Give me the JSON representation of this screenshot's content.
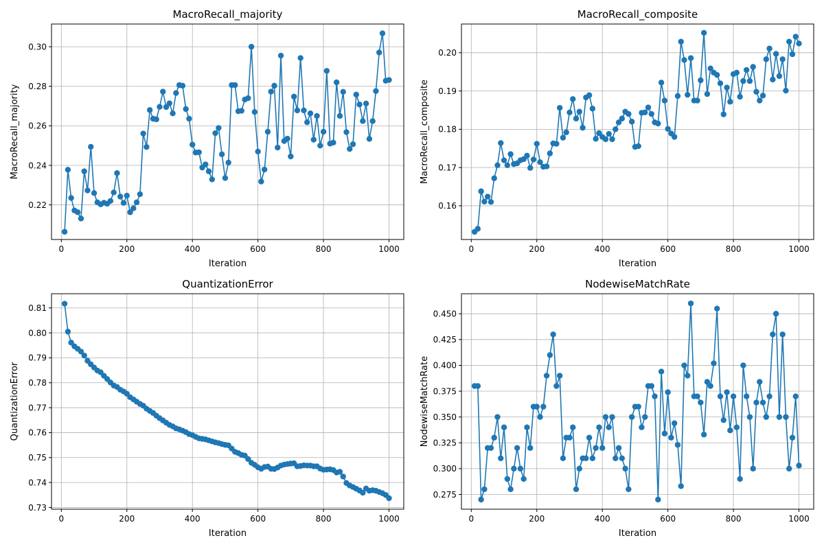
{
  "chart_data": [
    {
      "type": "line",
      "title": "MacroRecall_majority",
      "xlabel": "Iteration",
      "ylabel": "MacroRecall_majority",
      "xlim": [
        -30,
        1045
      ],
      "ylim": [
        0.2025,
        0.3115
      ],
      "xticks": [
        0,
        200,
        400,
        600,
        800,
        1000
      ],
      "yticks": [
        0.22,
        0.24,
        0.26,
        0.28,
        0.3
      ],
      "ytick_labels": [
        "0.22",
        "0.24",
        "0.26",
        "0.28",
        "0.30"
      ],
      "grid": true,
      "color": "#1f77b4",
      "x": [
        10,
        20,
        30,
        40,
        50,
        60,
        70,
        80,
        90,
        100,
        110,
        120,
        130,
        140,
        150,
        160,
        170,
        180,
        190,
        200,
        210,
        220,
        230,
        240,
        250,
        260,
        270,
        280,
        290,
        300,
        310,
        320,
        330,
        340,
        350,
        360,
        370,
        380,
        390,
        400,
        410,
        420,
        430,
        440,
        450,
        460,
        470,
        480,
        490,
        500,
        510,
        520,
        530,
        540,
        550,
        560,
        570,
        580,
        590,
        600,
        610,
        620,
        630,
        640,
        650,
        660,
        670,
        680,
        690,
        700,
        710,
        720,
        730,
        740,
        750,
        760,
        770,
        780,
        790,
        800,
        810,
        820,
        830,
        840,
        850,
        860,
        870,
        880,
        890,
        900,
        910,
        920,
        930,
        940,
        950,
        960,
        970,
        980,
        990,
        1000
      ],
      "y": [
        0.2064,
        0.2378,
        0.2235,
        0.2172,
        0.2163,
        0.2131,
        0.237,
        0.2273,
        0.2494,
        0.226,
        0.2213,
        0.2203,
        0.2211,
        0.2206,
        0.222,
        0.2263,
        0.2361,
        0.2242,
        0.221,
        0.2247,
        0.2163,
        0.2183,
        0.2213,
        0.2254,
        0.2561,
        0.2493,
        0.268,
        0.2636,
        0.2633,
        0.2696,
        0.2773,
        0.2695,
        0.2714,
        0.2663,
        0.2766,
        0.2806,
        0.2803,
        0.2685,
        0.2636,
        0.2505,
        0.2465,
        0.2466,
        0.2389,
        0.2405,
        0.237,
        0.2329,
        0.2563,
        0.2589,
        0.2456,
        0.2336,
        0.2414,
        0.2806,
        0.2806,
        0.2674,
        0.2676,
        0.2733,
        0.274,
        0.3,
        0.267,
        0.247,
        0.2318,
        0.2379,
        0.257,
        0.2773,
        0.2803,
        0.249,
        0.2955,
        0.2523,
        0.2535,
        0.2445,
        0.2748,
        0.2678,
        0.2943,
        0.2678,
        0.2618,
        0.2663,
        0.253,
        0.265,
        0.25,
        0.257,
        0.2878,
        0.251,
        0.2515,
        0.282,
        0.265,
        0.2772,
        0.2568,
        0.2483,
        0.2507,
        0.2758,
        0.2708,
        0.2624,
        0.2713,
        0.2534,
        0.2624,
        0.2776,
        0.2971,
        0.3068,
        0.2828,
        0.2832
      ]
    },
    {
      "type": "line",
      "title": "MacroRecall_composite",
      "xlabel": "Iteration",
      "ylabel": "MacroRecall_composite",
      "xlim": [
        -30,
        1045
      ],
      "ylim": [
        0.1512,
        0.2075
      ],
      "xticks": [
        0,
        200,
        400,
        600,
        800,
        1000
      ],
      "yticks": [
        0.16,
        0.17,
        0.18,
        0.19,
        0.2
      ],
      "ytick_labels": [
        "0.16",
        "0.17",
        "0.18",
        "0.19",
        "0.20"
      ],
      "grid": true,
      "color": "#1f77b4",
      "x": [
        10,
        20,
        30,
        40,
        50,
        60,
        70,
        80,
        90,
        100,
        110,
        120,
        130,
        140,
        150,
        160,
        170,
        180,
        190,
        200,
        210,
        220,
        230,
        240,
        250,
        260,
        270,
        280,
        290,
        300,
        310,
        320,
        330,
        340,
        350,
        360,
        370,
        380,
        390,
        400,
        410,
        420,
        430,
        440,
        450,
        460,
        470,
        480,
        490,
        500,
        510,
        520,
        530,
        540,
        550,
        560,
        570,
        580,
        590,
        600,
        610,
        620,
        630,
        640,
        650,
        660,
        670,
        680,
        690,
        700,
        710,
        720,
        730,
        740,
        750,
        760,
        770,
        780,
        790,
        800,
        810,
        820,
        830,
        840,
        850,
        860,
        870,
        880,
        890,
        900,
        910,
        920,
        930,
        940,
        950,
        960,
        970,
        980,
        990,
        1000
      ],
      "y": [
        0.1532,
        0.154,
        0.1638,
        0.1611,
        0.1624,
        0.161,
        0.1672,
        0.1706,
        0.1764,
        0.1719,
        0.1706,
        0.1735,
        0.1709,
        0.1711,
        0.1719,
        0.1722,
        0.1731,
        0.1699,
        0.1721,
        0.1762,
        0.1714,
        0.1702,
        0.1703,
        0.1737,
        0.1763,
        0.1762,
        0.1856,
        0.1778,
        0.1792,
        0.1844,
        0.1879,
        0.1828,
        0.1846,
        0.1804,
        0.1883,
        0.1889,
        0.1854,
        0.1775,
        0.179,
        0.178,
        0.1774,
        0.1788,
        0.1774,
        0.18,
        0.1818,
        0.1828,
        0.1846,
        0.184,
        0.182,
        0.1754,
        0.1756,
        0.1843,
        0.1844,
        0.1857,
        0.184,
        0.1818,
        0.1815,
        0.1922,
        0.1875,
        0.1801,
        0.1789,
        0.178,
        0.1887,
        0.2029,
        0.1981,
        0.189,
        0.1986,
        0.1875,
        0.1875,
        0.1928,
        0.2052,
        0.1892,
        0.1959,
        0.1948,
        0.1942,
        0.192,
        0.1839,
        0.1909,
        0.1872,
        0.1944,
        0.1948,
        0.1885,
        0.1926,
        0.1955,
        0.1926,
        0.1963,
        0.1898,
        0.1875,
        0.1888,
        0.1983,
        0.2011,
        0.193,
        0.1997,
        0.1939,
        0.1983,
        0.1901,
        0.2029,
        0.1996,
        0.2042,
        0.2024
      ]
    },
    {
      "type": "line",
      "title": "QuantizationError",
      "xlabel": "Iteration",
      "ylabel": "QuantizationError",
      "xlim": [
        -30,
        1045
      ],
      "ylim": [
        0.7293,
        0.8157
      ],
      "xticks": [
        0,
        200,
        400,
        600,
        800,
        1000
      ],
      "yticks": [
        0.73,
        0.74,
        0.75,
        0.76,
        0.77,
        0.78,
        0.79,
        0.8,
        0.81
      ],
      "ytick_labels": [
        "0.73",
        "0.74",
        "0.75",
        "0.76",
        "0.77",
        "0.78",
        "0.79",
        "0.80",
        "0.81"
      ],
      "grid": true,
      "color": "#1f77b4",
      "x": [
        10,
        20,
        30,
        40,
        50,
        60,
        70,
        80,
        90,
        100,
        110,
        120,
        130,
        140,
        150,
        160,
        170,
        180,
        190,
        200,
        210,
        220,
        230,
        240,
        250,
        260,
        270,
        280,
        290,
        300,
        310,
        320,
        330,
        340,
        350,
        360,
        370,
        380,
        390,
        400,
        410,
        420,
        430,
        440,
        450,
        460,
        470,
        480,
        490,
        500,
        510,
        520,
        530,
        540,
        550,
        560,
        570,
        580,
        590,
        600,
        610,
        620,
        630,
        640,
        650,
        660,
        670,
        680,
        690,
        700,
        710,
        720,
        730,
        740,
        750,
        760,
        770,
        780,
        790,
        800,
        810,
        820,
        830,
        840,
        850,
        860,
        870,
        880,
        890,
        900,
        910,
        920,
        930,
        940,
        950,
        960,
        970,
        980,
        990,
        1000
      ],
      "y": [
        0.8117,
        0.8005,
        0.7961,
        0.7946,
        0.7936,
        0.7925,
        0.7909,
        0.7888,
        0.7874,
        0.7861,
        0.7849,
        0.7842,
        0.7828,
        0.7815,
        0.7801,
        0.7789,
        0.7783,
        0.7772,
        0.7765,
        0.7756,
        0.7742,
        0.7733,
        0.7724,
        0.7715,
        0.7708,
        0.7696,
        0.7687,
        0.7679,
        0.7668,
        0.7658,
        0.7649,
        0.764,
        0.7631,
        0.7625,
        0.7617,
        0.7613,
        0.7608,
        0.7602,
        0.7594,
        0.759,
        0.7583,
        0.7577,
        0.7575,
        0.7573,
        0.7569,
        0.7565,
        0.7561,
        0.7558,
        0.7554,
        0.7551,
        0.7549,
        0.7536,
        0.7523,
        0.7518,
        0.7511,
        0.7508,
        0.7494,
        0.7479,
        0.7471,
        0.7461,
        0.7455,
        0.7462,
        0.7464,
        0.7455,
        0.7454,
        0.746,
        0.7468,
        0.7472,
        0.7474,
        0.7476,
        0.7477,
        0.7465,
        0.7466,
        0.7469,
        0.7468,
        0.7468,
        0.7465,
        0.7465,
        0.7456,
        0.7451,
        0.7452,
        0.7453,
        0.745,
        0.744,
        0.7443,
        0.7424,
        0.7398,
        0.7388,
        0.7382,
        0.7375,
        0.7368,
        0.7359,
        0.7376,
        0.7367,
        0.7369,
        0.7367,
        0.7362,
        0.7357,
        0.735,
        0.7337
      ]
    },
    {
      "type": "line",
      "title": "NodewiseMatchRate",
      "xlabel": "Iteration",
      "ylabel": "NodewiseMatchRate",
      "xlim": [
        -30,
        1045
      ],
      "ylim": [
        0.2607,
        0.4694
      ],
      "xticks": [
        0,
        200,
        400,
        600,
        800,
        1000
      ],
      "yticks": [
        0.275,
        0.3,
        0.325,
        0.35,
        0.375,
        0.4,
        0.425,
        0.45
      ],
      "ytick_labels": [
        "0.275",
        "0.300",
        "0.325",
        "0.350",
        "0.375",
        "0.400",
        "0.425",
        "0.450"
      ],
      "grid": true,
      "color": "#1f77b4",
      "x": [
        10,
        20,
        30,
        40,
        50,
        60,
        70,
        80,
        90,
        100,
        110,
        120,
        130,
        140,
        150,
        160,
        170,
        180,
        190,
        200,
        210,
        220,
        230,
        240,
        250,
        260,
        270,
        280,
        290,
        300,
        310,
        320,
        330,
        340,
        350,
        360,
        370,
        380,
        390,
        400,
        410,
        420,
        430,
        440,
        450,
        460,
        470,
        480,
        490,
        500,
        510,
        520,
        530,
        540,
        550,
        560,
        570,
        580,
        590,
        600,
        610,
        620,
        630,
        640,
        650,
        660,
        670,
        680,
        690,
        700,
        710,
        720,
        730,
        740,
        750,
        760,
        770,
        780,
        790,
        800,
        810,
        820,
        830,
        840,
        850,
        860,
        870,
        880,
        890,
        900,
        910,
        920,
        930,
        940,
        950,
        960,
        970,
        980,
        990,
        1000
      ],
      "y": [
        0.38,
        0.38,
        0.27,
        0.28,
        0.32,
        0.32,
        0.33,
        0.35,
        0.31,
        0.34,
        0.29,
        0.28,
        0.3,
        0.32,
        0.3,
        0.29,
        0.34,
        0.32,
        0.36,
        0.36,
        0.35,
        0.36,
        0.39,
        0.41,
        0.43,
        0.38,
        0.39,
        0.31,
        0.33,
        0.33,
        0.34,
        0.28,
        0.3,
        0.31,
        0.31,
        0.33,
        0.31,
        0.32,
        0.34,
        0.32,
        0.35,
        0.34,
        0.35,
        0.31,
        0.32,
        0.31,
        0.3,
        0.28,
        0.35,
        0.36,
        0.36,
        0.34,
        0.35,
        0.38,
        0.38,
        0.37,
        0.27,
        0.394,
        0.334,
        0.374,
        0.33,
        0.344,
        0.323,
        0.283,
        0.4,
        0.39,
        0.46,
        0.37,
        0.37,
        0.364,
        0.333,
        0.384,
        0.38,
        0.402,
        0.455,
        0.37,
        0.347,
        0.374,
        0.337,
        0.37,
        0.34,
        0.29,
        0.4,
        0.37,
        0.35,
        0.3,
        0.364,
        0.384,
        0.364,
        0.35,
        0.37,
        0.43,
        0.45,
        0.35,
        0.43,
        0.35,
        0.3,
        0.33,
        0.37,
        0.303
      ]
    }
  ]
}
